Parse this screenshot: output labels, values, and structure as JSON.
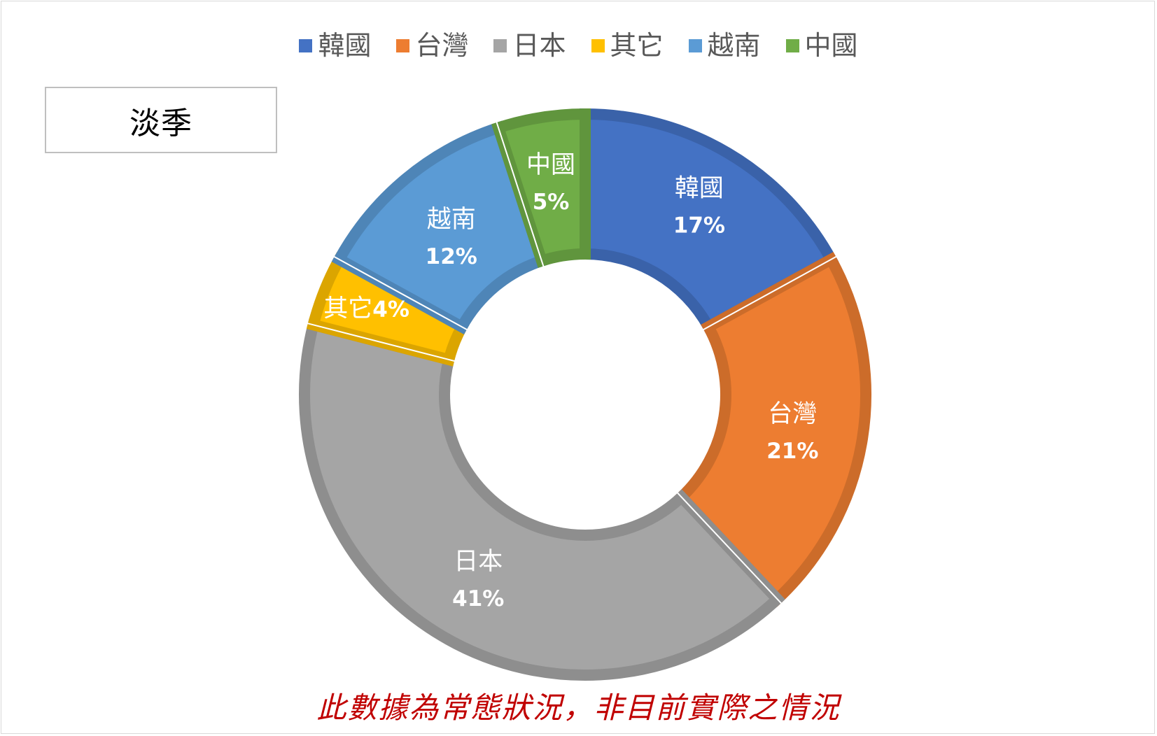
{
  "season_label": "淡季",
  "footnote": "此數據為常態狀況，非目前實際之情況",
  "chart_data": {
    "type": "pie",
    "donut": true,
    "legend_position": "top",
    "categories": [
      "韓國",
      "台灣",
      "日本",
      "其它",
      "越南",
      "中國"
    ],
    "values": [
      17,
      21,
      41,
      4,
      12,
      5
    ],
    "data_labels": [
      {
        "name": "韓國",
        "value": "17%"
      },
      {
        "name": "台灣",
        "value": "21%"
      },
      {
        "name": "日本",
        "value": "41%"
      },
      {
        "name": "其它",
        "value": "4%"
      },
      {
        "name": "越南",
        "value": "12%"
      },
      {
        "name": "中國",
        "value": "5%"
      }
    ],
    "colors": [
      "#4472c4",
      "#ed7d31",
      "#a5a5a5",
      "#ffc000",
      "#5b9bd5",
      "#70ad47"
    ]
  }
}
